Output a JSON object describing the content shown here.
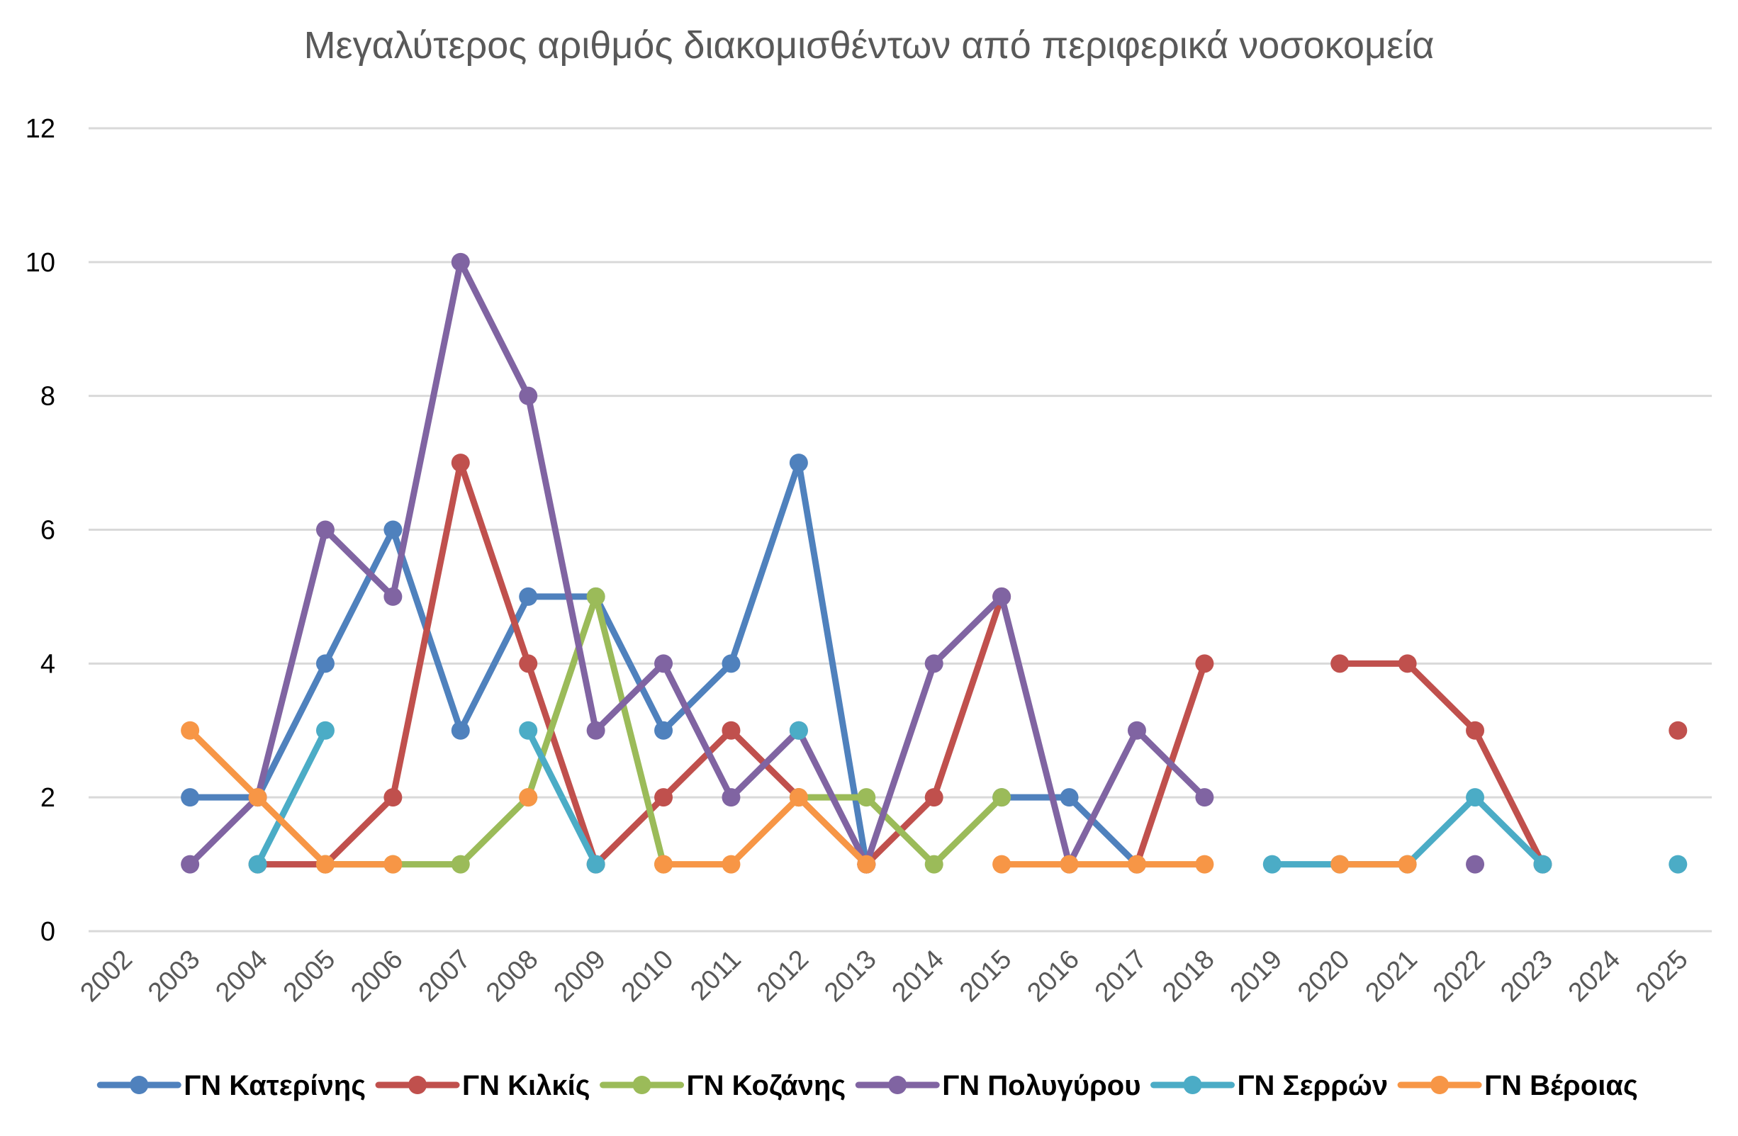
{
  "chart_data": {
    "type": "line",
    "title": "Μεγαλύτερος αριθμός διακομισθέντων από περιφερικά νοσοκομεία",
    "xlabel": "",
    "ylabel": "",
    "x": [
      "2002",
      "2003",
      "2004",
      "2005",
      "2006",
      "2007",
      "2008",
      "2009",
      "2010",
      "2011",
      "2012",
      "2013",
      "2014",
      "2015",
      "2016",
      "2017",
      "2018",
      "2019",
      "2020",
      "2021",
      "2022",
      "2023",
      "2024",
      "2025"
    ],
    "ylim": [
      0,
      12
    ],
    "yticks": [
      "0",
      "2",
      "4",
      "6",
      "8",
      "10",
      "12"
    ],
    "grid": true,
    "legend_position": "bottom",
    "series": [
      {
        "name": "ΓΝ Κατερίνης",
        "color": "#4F81BD",
        "values": [
          null,
          2,
          2,
          4,
          6,
          3,
          5,
          5,
          3,
          4,
          7,
          1,
          null,
          2,
          2,
          1,
          null,
          null,
          null,
          null,
          null,
          null,
          null,
          null
        ]
      },
      {
        "name": "ΓΝ Κιλκίς",
        "color": "#C0504D",
        "values": [
          null,
          null,
          1,
          1,
          2,
          7,
          4,
          1,
          2,
          3,
          2,
          1,
          2,
          5,
          null,
          1,
          4,
          null,
          4,
          4,
          3,
          1,
          null,
          3
        ]
      },
      {
        "name": "ΓΝ Κοζάνης",
        "color": "#9BBB59",
        "values": [
          null,
          null,
          null,
          1,
          1,
          1,
          2,
          5,
          1,
          null,
          2,
          2,
          1,
          2,
          null,
          null,
          null,
          null,
          null,
          null,
          null,
          null,
          null,
          null
        ]
      },
      {
        "name": "ΓΝ Πολυγύρου",
        "color": "#8064A2",
        "values": [
          null,
          1,
          2,
          6,
          5,
          10,
          8,
          3,
          4,
          2,
          3,
          1,
          4,
          5,
          1,
          3,
          2,
          null,
          null,
          null,
          1,
          null,
          null,
          null
        ]
      },
      {
        "name": "ΓΝ Σερρών",
        "color": "#4BACC6",
        "values": [
          null,
          null,
          1,
          3,
          null,
          null,
          3,
          1,
          null,
          null,
          3,
          null,
          null,
          null,
          null,
          null,
          null,
          1,
          1,
          1,
          2,
          1,
          null,
          1
        ]
      },
      {
        "name": "ΓΝ Βέροιας",
        "color": "#F79646",
        "values": [
          null,
          3,
          2,
          1,
          1,
          null,
          2,
          null,
          1,
          1,
          2,
          1,
          null,
          1,
          1,
          1,
          1,
          null,
          1,
          1,
          null,
          null,
          null,
          null
        ]
      }
    ]
  }
}
